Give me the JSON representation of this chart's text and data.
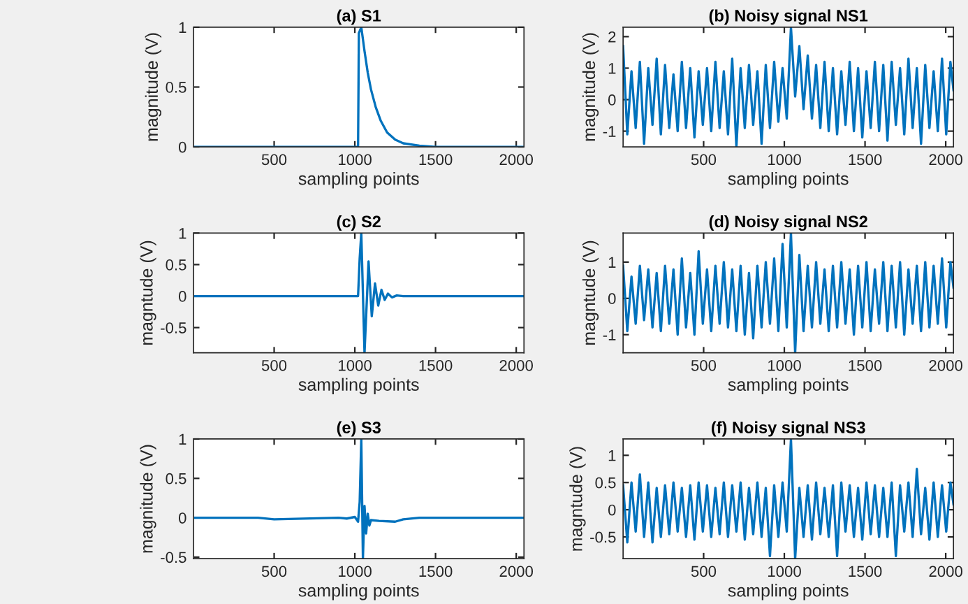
{
  "chart_data": [
    {
      "type": "line",
      "title": "(a) S1",
      "xlabel": "sampling points",
      "ylabel": "magnitude (V)",
      "xlim": [
        1,
        2048
      ],
      "xticks": [
        500,
        1000,
        1500,
        2000
      ],
      "ylim": [
        0,
        1
      ],
      "yticks": [
        0,
        0.5,
        1
      ],
      "x": [
        1,
        1020,
        1025,
        1040,
        1060,
        1080,
        1100,
        1130,
        1160,
        1200,
        1250,
        1300,
        1400,
        1500,
        2048
      ],
      "series": [
        {
          "color": "#0072bd",
          "values": [
            0,
            0,
            0.95,
            1,
            0.8,
            0.62,
            0.48,
            0.33,
            0.22,
            0.12,
            0.06,
            0.03,
            0.01,
            0,
            0
          ]
        }
      ]
    },
    {
      "type": "line",
      "title": "(b) Noisy signal NS1",
      "xlabel": "sampling points",
      "ylabel": "magnitude (V)",
      "xlim": [
        1,
        2048
      ],
      "xticks": [
        500,
        1000,
        1500,
        2000
      ],
      "ylim": [
        -1.5,
        2.3
      ],
      "yticks": [
        -1,
        0,
        1,
        2
      ],
      "x": [
        1,
        27,
        53,
        79,
        105,
        131,
        157,
        183,
        209,
        235,
        261,
        287,
        313,
        339,
        365,
        391,
        417,
        443,
        469,
        495,
        521,
        547,
        573,
        599,
        625,
        651,
        677,
        703,
        729,
        755,
        781,
        807,
        833,
        859,
        885,
        911,
        937,
        963,
        989,
        1015,
        1041,
        1067,
        1093,
        1119,
        1145,
        1171,
        1197,
        1223,
        1249,
        1275,
        1301,
        1327,
        1353,
        1379,
        1405,
        1431,
        1457,
        1483,
        1509,
        1535,
        1561,
        1587,
        1613,
        1639,
        1665,
        1691,
        1717,
        1743,
        1769,
        1795,
        1821,
        1847,
        1873,
        1899,
        1925,
        1951,
        1977,
        2003,
        2029,
        2048
      ],
      "series": [
        {
          "color": "#0072bd",
          "values": [
            1.7,
            -1.1,
            0.9,
            -0.9,
            1.2,
            -1.4,
            1.0,
            -0.8,
            1.3,
            -1.1,
            1.1,
            -0.9,
            0.8,
            -1.0,
            1.2,
            -0.9,
            1.0,
            -1.2,
            0.9,
            -0.8,
            1.0,
            -1.0,
            1.2,
            -0.9,
            0.9,
            -1.1,
            1.3,
            -1.5,
            1.0,
            -0.9,
            1.1,
            -0.8,
            0.9,
            -1.4,
            1.1,
            -0.9,
            1.2,
            -0.7,
            1.0,
            -0.6,
            2.3,
            0.1,
            1.7,
            -0.3,
            1.4,
            -0.6,
            1.1,
            -0.9,
            1.2,
            -1.0,
            1.0,
            -1.1,
            0.9,
            -0.8,
            1.2,
            -1.0,
            1.0,
            -1.2,
            0.9,
            -0.9,
            1.2,
            -1.0,
            1.1,
            -1.3,
            1.2,
            -0.8,
            1.0,
            -1.1,
            1.3,
            -0.9,
            1.0,
            -1.4,
            1.1,
            -0.9,
            0.9,
            -1.0,
            1.3,
            -1.1,
            1.2,
            0.3
          ]
        }
      ]
    },
    {
      "type": "line",
      "title": "(c) S2",
      "xlabel": "sampling points",
      "ylabel": "magntude (V)",
      "xlim": [
        1,
        2048
      ],
      "xticks": [
        500,
        1000,
        1500,
        2000
      ],
      "ylim": [
        -0.9,
        1
      ],
      "yticks": [
        -0.5,
        0,
        0.5,
        1
      ],
      "x": [
        1,
        1020,
        1030,
        1040,
        1060,
        1085,
        1105,
        1125,
        1145,
        1165,
        1185,
        1205,
        1230,
        1260,
        1300,
        2048
      ],
      "series": [
        {
          "color": "#0072bd",
          "values": [
            0,
            0,
            0.6,
            1,
            -0.9,
            0.55,
            -0.32,
            0.2,
            -0.15,
            0.1,
            -0.06,
            0.04,
            -0.02,
            0.01,
            0,
            0
          ]
        }
      ]
    },
    {
      "type": "line",
      "title": "(d) Noisy signal NS2",
      "xlabel": "sampling points",
      "ylabel": "magntude (V)",
      "xlim": [
        1,
        2048
      ],
      "xticks": [
        500,
        1000,
        1500,
        2000
      ],
      "ylim": [
        -1.5,
        1.8
      ],
      "yticks": [
        -1,
        0,
        1
      ],
      "x": [
        1,
        27,
        53,
        79,
        105,
        131,
        157,
        183,
        209,
        235,
        261,
        287,
        313,
        339,
        365,
        391,
        417,
        443,
        469,
        495,
        521,
        547,
        573,
        599,
        625,
        651,
        677,
        703,
        729,
        755,
        781,
        807,
        833,
        859,
        885,
        911,
        937,
        963,
        989,
        1015,
        1041,
        1067,
        1093,
        1119,
        1145,
        1171,
        1197,
        1223,
        1249,
        1275,
        1301,
        1327,
        1353,
        1379,
        1405,
        1431,
        1457,
        1483,
        1509,
        1535,
        1561,
        1587,
        1613,
        1639,
        1665,
        1691,
        1717,
        1743,
        1769,
        1795,
        1821,
        1847,
        1873,
        1899,
        1925,
        1951,
        1977,
        2003,
        2029,
        2048
      ],
      "series": [
        {
          "color": "#0072bd",
          "values": [
            0.9,
            -0.9,
            0.6,
            -0.7,
            0.9,
            -0.6,
            0.8,
            -0.8,
            0.7,
            -0.9,
            0.9,
            -0.7,
            0.8,
            -1.0,
            1.1,
            -0.8,
            0.7,
            -1.0,
            1.3,
            -0.7,
            0.8,
            -0.9,
            0.9,
            -0.7,
            1.0,
            -0.8,
            0.8,
            -0.9,
            0.9,
            -1.0,
            0.7,
            -1.1,
            0.9,
            -0.8,
            1.0,
            -0.7,
            1.1,
            -0.9,
            1.5,
            -0.8,
            1.8,
            -1.5,
            1.2,
            -0.9,
            0.9,
            -0.8,
            1.0,
            -0.7,
            0.8,
            -0.9,
            0.9,
            -0.8,
            1.0,
            -0.7,
            0.8,
            -1.0,
            0.9,
            -0.8,
            1.0,
            -0.9,
            0.8,
            -0.7,
            1.0,
            -0.9,
            0.9,
            -0.8,
            1.0,
            -1.0,
            0.8,
            -0.7,
            0.9,
            -0.9,
            1.0,
            -0.8,
            0.9,
            -0.7,
            1.1,
            -0.8,
            1.0,
            0.3
          ]
        }
      ]
    },
    {
      "type": "line",
      "title": "(e) S3",
      "xlabel": "sampling points",
      "ylabel": "magnitude (V)",
      "xlim": [
        1,
        2048
      ],
      "xticks": [
        500,
        1000,
        1500,
        2000
      ],
      "ylim": [
        -0.52,
        1
      ],
      "yticks": [
        -0.5,
        0,
        0.5,
        1
      ],
      "x": [
        1,
        400,
        500,
        900,
        950,
        1000,
        1020,
        1030,
        1040,
        1050,
        1060,
        1070,
        1080,
        1090,
        1100,
        1150,
        1250,
        1300,
        1400,
        2048
      ],
      "series": [
        {
          "color": "#0072bd",
          "values": [
            0,
            0,
            -0.02,
            0,
            -0.01,
            0.01,
            -0.05,
            0.2,
            1,
            -0.52,
            0.15,
            -0.2,
            0.05,
            -0.1,
            -0.03,
            -0.04,
            -0.05,
            -0.02,
            0,
            0
          ]
        }
      ]
    },
    {
      "type": "line",
      "title": "(f) Noisy signal NS3",
      "xlabel": "sampling points",
      "ylabel": "magntude (V)",
      "xlim": [
        1,
        2048
      ],
      "xticks": [
        500,
        1000,
        1500,
        2000
      ],
      "ylim": [
        -0.9,
        1.3
      ],
      "yticks": [
        -0.5,
        0,
        0.5,
        1
      ],
      "x": [
        1,
        27,
        53,
        79,
        105,
        131,
        157,
        183,
        209,
        235,
        261,
        287,
        313,
        339,
        365,
        391,
        417,
        443,
        469,
        495,
        521,
        547,
        573,
        599,
        625,
        651,
        677,
        703,
        729,
        755,
        781,
        807,
        833,
        859,
        885,
        911,
        937,
        963,
        989,
        1015,
        1041,
        1067,
        1093,
        1119,
        1145,
        1171,
        1197,
        1223,
        1249,
        1275,
        1301,
        1327,
        1353,
        1379,
        1405,
        1431,
        1457,
        1483,
        1509,
        1535,
        1561,
        1587,
        1613,
        1639,
        1665,
        1691,
        1717,
        1743,
        1769,
        1795,
        1821,
        1847,
        1873,
        1899,
        1925,
        1951,
        1977,
        2003,
        2029,
        2048
      ],
      "series": [
        {
          "color": "#0072bd",
          "values": [
            0.45,
            -0.6,
            0.5,
            -0.4,
            0.65,
            -0.5,
            0.5,
            -0.6,
            0.4,
            -0.5,
            0.45,
            -0.45,
            0.5,
            -0.4,
            0.4,
            -0.5,
            0.45,
            -0.55,
            0.5,
            -0.4,
            0.45,
            -0.5,
            0.4,
            -0.45,
            0.5,
            -0.5,
            0.45,
            -0.4,
            0.5,
            -0.55,
            0.4,
            -0.45,
            0.5,
            -0.5,
            0.4,
            -0.85,
            0.45,
            -0.5,
            0.5,
            -0.4,
            1.3,
            -0.9,
            0.4,
            -0.5,
            0.45,
            -0.55,
            0.5,
            -0.45,
            0.4,
            -0.5,
            0.45,
            -0.85,
            0.5,
            -0.4,
            0.45,
            -0.5,
            0.4,
            -0.55,
            0.5,
            -0.45,
            0.45,
            -0.5,
            0.4,
            -0.5,
            0.5,
            -0.85,
            0.45,
            -0.4,
            0.5,
            -0.5,
            0.75,
            -0.45,
            0.4,
            -0.55,
            0.5,
            -0.5,
            0.45,
            -0.4,
            0.5,
            0.1
          ]
        }
      ]
    }
  ]
}
